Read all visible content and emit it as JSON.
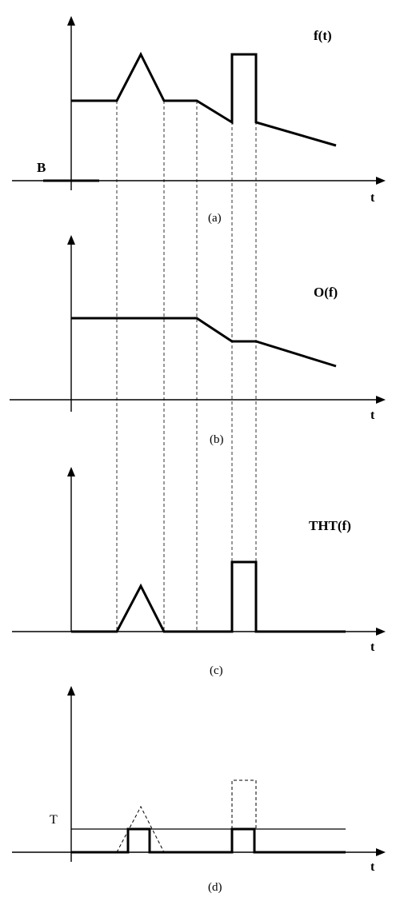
{
  "panels": [
    {
      "caption": "(a)",
      "signal_label": "f(t)",
      "axis_label": "t",
      "level_label": "B"
    },
    {
      "caption": "(b)",
      "signal_label": "O(f)",
      "axis_label": "t"
    },
    {
      "caption": "(c)",
      "signal_label": "THT(f)",
      "axis_label": "t"
    },
    {
      "caption": "(d)",
      "axis_label": "t",
      "threshold_label": "T"
    }
  ],
  "colors": {
    "ink": "#000000",
    "guide": "#333333"
  }
}
